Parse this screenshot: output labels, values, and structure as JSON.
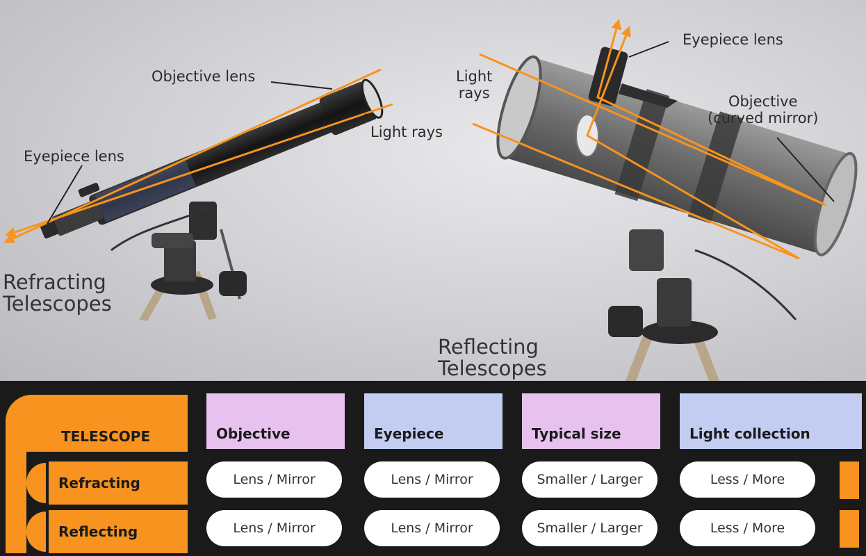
{
  "refracting": {
    "caption_line1": "Refracting",
    "caption_line2": "Telescopes",
    "label_objective": "Objective lens",
    "label_light": "Light rays",
    "label_eyepiece": "Eyepiece lens"
  },
  "reflecting": {
    "caption_line1": "Reflecting",
    "caption_line2": "Telescopes",
    "label_light_line1": "Light",
    "label_light_line2": "rays",
    "label_eyepiece": "Eyepiece lens",
    "label_objective_line1": "Objective",
    "label_objective_line2": "(curved mirror)"
  },
  "colors": {
    "ray": "#f7931e",
    "orange": "#f7931e",
    "pink": "#e7c2ee",
    "blue": "#c3cdf1"
  },
  "table": {
    "corner_label": "TELESCOPE",
    "headers": [
      "Objective",
      "Eyepiece",
      "Typical size",
      "Light collection"
    ],
    "rows": [
      {
        "label": "Refracting",
        "cells": [
          "Lens / Mirror",
          "Lens / Mirror",
          "Smaller / Larger",
          "Less / More"
        ]
      },
      {
        "label": "Reflecting",
        "cells": [
          "Lens / Mirror",
          "Lens / Mirror",
          "Smaller / Larger",
          "Less / More"
        ]
      }
    ]
  }
}
